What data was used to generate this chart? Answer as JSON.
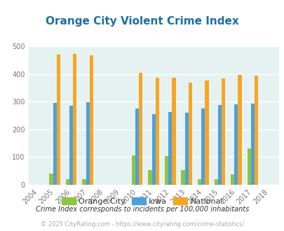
{
  "title": "Orange City Violent Crime Index",
  "years": [
    "2004",
    "2005",
    "2006",
    "2007",
    "2008",
    "2009",
    "2010",
    "2011",
    "2012",
    "2013",
    "2014",
    "2015",
    "2016",
    "2017",
    "2018"
  ],
  "orange_city": [
    0,
    40,
    20,
    20,
    0,
    0,
    107,
    53,
    103,
    53,
    20,
    20,
    38,
    132,
    0
  ],
  "iowa": [
    0,
    296,
    285,
    298,
    0,
    0,
    275,
    256,
    263,
    261,
    274,
    289,
    291,
    294,
    0
  ],
  "national": [
    0,
    469,
    473,
    467,
    0,
    0,
    405,
    387,
    387,
    368,
    376,
    383,
    397,
    393,
    0
  ],
  "color_orange_city": "#8dc63f",
  "color_iowa": "#4d9fde",
  "color_national": "#f5a623",
  "plot_bg": "#e6f2f2",
  "ylim": [
    0,
    500
  ],
  "yticks": [
    0,
    100,
    200,
    300,
    400,
    500
  ],
  "tick_fontsize": 7,
  "title_fontsize": 11,
  "title_color": "#1a6fa8",
  "legend_labels": [
    "Orange City",
    "Iowa",
    "National"
  ],
  "footer_text1": "Crime Index corresponds to incidents per 100,000 inhabitants",
  "footer_text2": "© 2025 CityRating.com - https://www.cityrating.com/crime-statistics/",
  "bar_width": 0.22,
  "figsize": [
    4.06,
    3.3
  ],
  "dpi": 100
}
